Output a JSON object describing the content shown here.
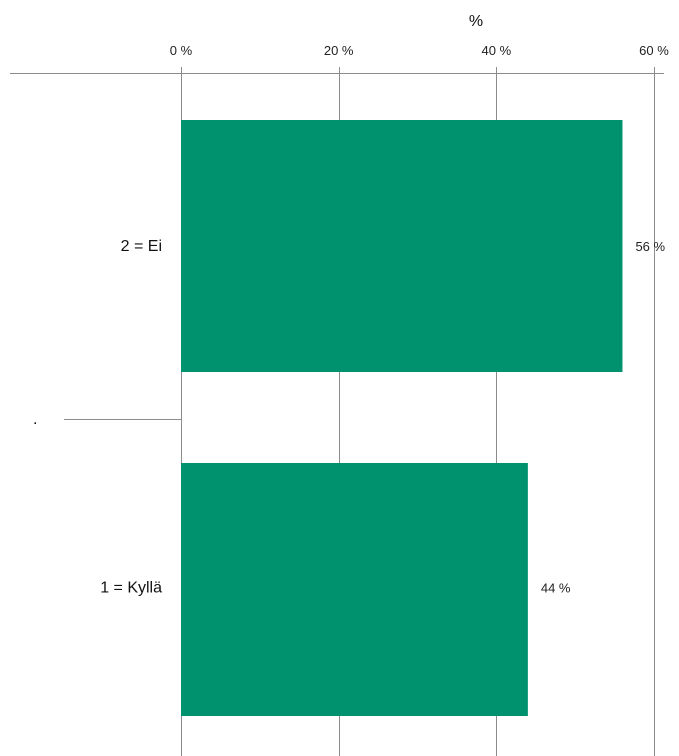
{
  "chart_data": {
    "type": "bar",
    "orientation": "horizontal",
    "x_axis_title": "%",
    "x_axis_position": "top",
    "xlim": [
      0,
      60
    ],
    "xticks": [
      0,
      20,
      40,
      60
    ],
    "xtick_labels": [
      "0 %",
      "20 %",
      "40 %",
      "60 %"
    ],
    "categories": [
      "2 = Ei",
      "1 = Kyllä"
    ],
    "values": [
      56,
      44
    ],
    "value_labels": [
      "56 %",
      "44 %"
    ],
    "bar_color": "#00916e",
    "grid": true
  },
  "stray_mark": "."
}
